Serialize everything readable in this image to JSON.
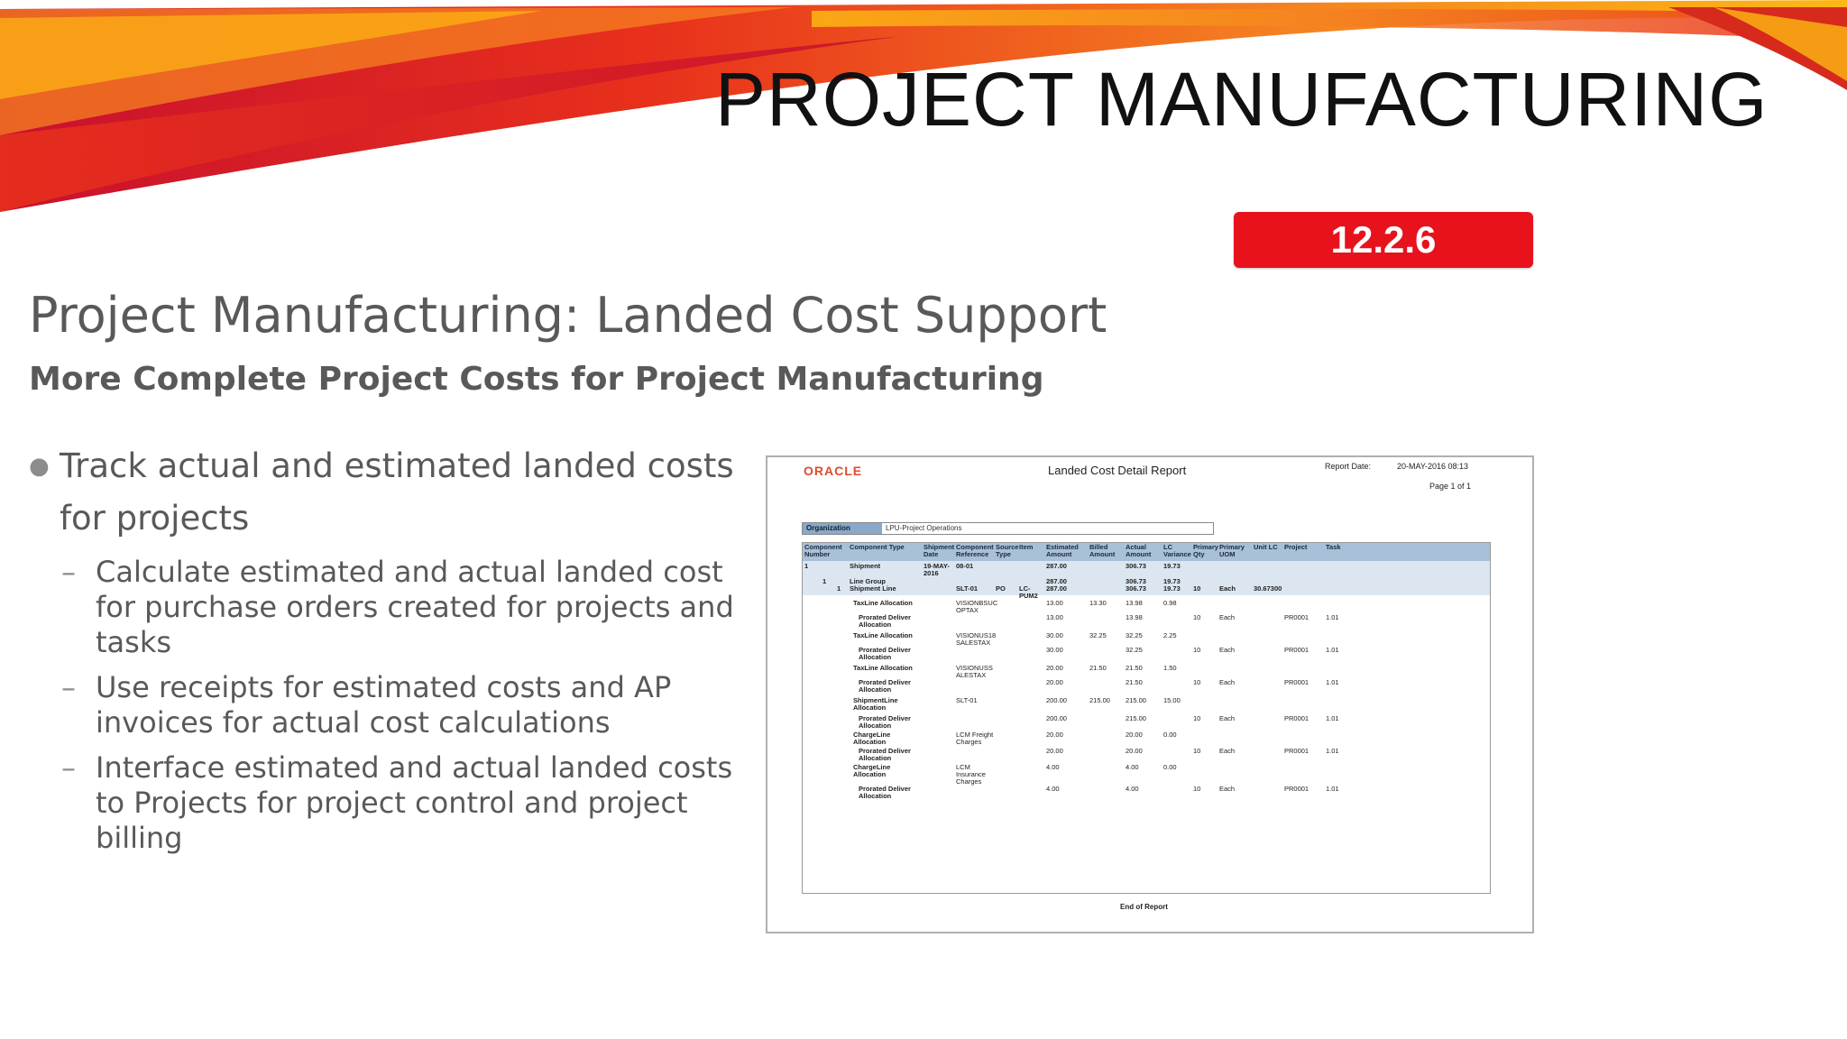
{
  "slide": {
    "title": "PROJECT MANUFACTURING",
    "version_badge": "12.2.6",
    "heading": "Project Manufacturing: Landed Cost Support",
    "subheading": "More Complete Project Costs for Project Manufacturing",
    "bullets": [
      {
        "text": "Track actual and estimated landed costs for projects",
        "sub": [
          "Calculate estimated and actual landed cost for purchase orders created for projects and tasks",
          "Use receipts for estimated costs and AP invoices for actual cost calculations",
          "Interface estimated and actual landed costs to Projects for project control and project billing"
        ]
      }
    ],
    "colors": {
      "badge": "#e8121c",
      "text": "#595959",
      "swoosh": [
        "#c8102e",
        "#e8301c",
        "#f58220",
        "#fdb813"
      ]
    }
  },
  "report": {
    "logo": "ORACLE",
    "title": "Landed Cost Detail Report",
    "report_date_label": "Report Date:",
    "report_date": "20-MAY-2016 08:13",
    "page": "Page 1 of 1",
    "organization_label": "Organization",
    "organization_value": "LPU-Project Operations",
    "headers": [
      "Component\nNumber",
      "Component Type",
      "Shipment\nDate",
      "Component\nReference",
      "Source\nType",
      "Item",
      "Estimated\nAmount",
      "Billed\nAmount",
      "Actual\nAmount",
      "LC\nVariance",
      "Primary\nQty",
      "Primary\nUOM",
      "Unit LC",
      "Project",
      "Task"
    ],
    "rows": [
      [
        "1",
        "Shipment",
        "19-MAY-\n2016",
        "08-01",
        "",
        "",
        "287.00",
        "",
        "306.73",
        "19.73",
        "",
        "",
        "",
        "",
        ""
      ],
      [
        "1",
        "Line Group",
        "",
        "",
        "",
        "",
        "287.00",
        "",
        "306.73",
        "19.73",
        "",
        "",
        "",
        "",
        ""
      ],
      [
        "1",
        "Shipment Line",
        "",
        "SLT-01",
        "PO",
        "LC-\nPUM2",
        "287.00",
        "",
        "306.73",
        "19.73",
        "10",
        "Each",
        "30.67300",
        "",
        ""
      ],
      [
        "",
        "TaxLine Allocation",
        "",
        "VISIONBSUC\nOPTAX",
        "",
        "",
        "13.00",
        "13.30",
        "13.98",
        "0.98",
        "",
        "",
        "",
        "",
        ""
      ],
      [
        "",
        "Prorated Deliver\nAllocation",
        "",
        "",
        "",
        "",
        "13.00",
        "",
        "13.98",
        "",
        "10",
        "Each",
        "",
        "PR0001",
        "1.01"
      ],
      [
        "",
        "TaxLine Allocation",
        "",
        "VISIONUS18\nSALESTAX",
        "",
        "",
        "30.00",
        "32.25",
        "32.25",
        "2.25",
        "",
        "",
        "",
        "",
        ""
      ],
      [
        "",
        "Prorated Deliver\nAllocation",
        "",
        "",
        "",
        "",
        "30.00",
        "",
        "32.25",
        "",
        "10",
        "Each",
        "",
        "PR0001",
        "1.01"
      ],
      [
        "",
        "TaxLine Allocation",
        "",
        "VISIONUSS\nALESTAX",
        "",
        "",
        "20.00",
        "21.50",
        "21.50",
        "1.50",
        "",
        "",
        "",
        "",
        ""
      ],
      [
        "",
        "Prorated Deliver\nAllocation",
        "",
        "",
        "",
        "",
        "20.00",
        "",
        "21.50",
        "",
        "10",
        "Each",
        "",
        "PR0001",
        "1.01"
      ],
      [
        "",
        "ShipmentLine\nAllocation",
        "",
        "SLT-01",
        "",
        "",
        "200.00",
        "215.00",
        "215.00",
        "15.00",
        "",
        "",
        "",
        "",
        ""
      ],
      [
        "",
        "Prorated Deliver\nAllocation",
        "",
        "",
        "",
        "",
        "200.00",
        "",
        "215.00",
        "",
        "10",
        "Each",
        "",
        "PR0001",
        "1.01"
      ],
      [
        "",
        "ChargeLine\nAllocation",
        "",
        "LCM Freight\nCharges",
        "",
        "",
        "20.00",
        "",
        "20.00",
        "0.00",
        "",
        "",
        "",
        "",
        ""
      ],
      [
        "",
        "Prorated Deliver\nAllocation",
        "",
        "",
        "",
        "",
        "20.00",
        "",
        "20.00",
        "",
        "10",
        "Each",
        "",
        "PR0001",
        "1.01"
      ],
      [
        "",
        "ChargeLine\nAllocation",
        "",
        "LCM\nInsurance\nCharges",
        "",
        "",
        "4.00",
        "",
        "4.00",
        "0.00",
        "",
        "",
        "",
        "",
        ""
      ],
      [
        "",
        "Prorated Deliver\nAllocation",
        "",
        "",
        "",
        "",
        "4.00",
        "",
        "4.00",
        "",
        "10",
        "Each",
        "",
        "PR0001",
        "1.01"
      ]
    ],
    "end_text": "End of Report"
  }
}
